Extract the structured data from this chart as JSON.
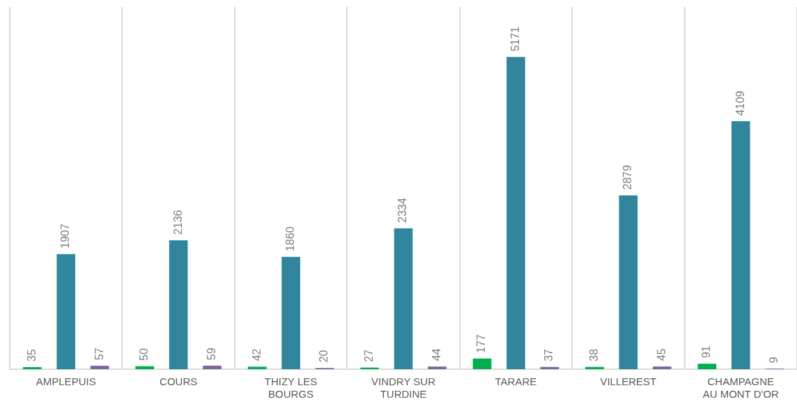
{
  "chart_data": {
    "type": "bar",
    "categories": [
      "AMPLEPUIS",
      "COURS",
      "THIZY LES BOURGS",
      "VINDRY SUR TURDINE",
      "TARARE",
      "VILLEREST",
      "CHAMPAGNE AU MONT D'OR"
    ],
    "series": [
      {
        "color": "#00b050",
        "values": [
          35,
          50,
          42,
          27,
          177,
          38,
          91
        ]
      },
      {
        "color": "#31859c",
        "values": [
          1907,
          2136,
          1860,
          2334,
          5171,
          2879,
          4109
        ]
      },
      {
        "color": "#8064a2",
        "values": [
          57,
          59,
          20,
          44,
          37,
          45,
          9
        ]
      }
    ],
    "ylim": [
      0,
      6000
    ],
    "tick_labels": "x",
    "grid": "x",
    "data_labels": true
  }
}
